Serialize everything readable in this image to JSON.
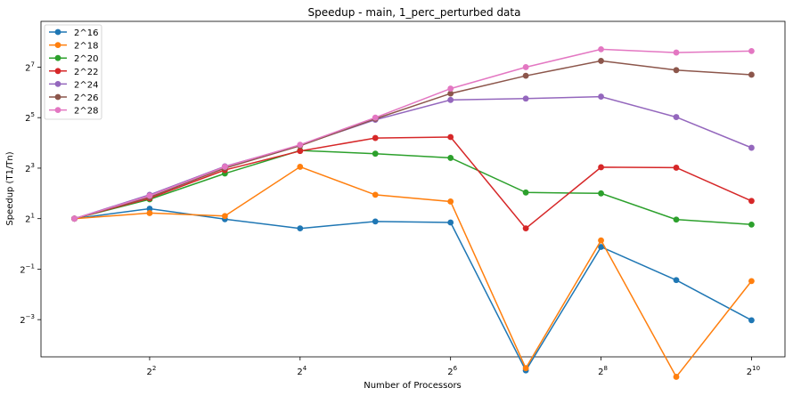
{
  "chart_data": {
    "type": "line",
    "title": "Speedup - main, 1_perc_perturbed data",
    "xlabel": "Number of Processors",
    "ylabel": "Speedup (T1/Tn)",
    "xscale": "log2",
    "yscale": "log2",
    "x": [
      2,
      4,
      8,
      16,
      32,
      64,
      128,
      256,
      512,
      1024
    ],
    "xticks": [
      {
        "value": 4,
        "base": "2",
        "exp": "2"
      },
      {
        "value": 16,
        "base": "2",
        "exp": "4"
      },
      {
        "value": 64,
        "base": "2",
        "exp": "6"
      },
      {
        "value": 256,
        "base": "2",
        "exp": "8"
      },
      {
        "value": 1024,
        "base": "2",
        "exp": "10"
      }
    ],
    "yticks": [
      {
        "value": 0.125,
        "base": "2",
        "exp": "−3"
      },
      {
        "value": 0.5,
        "base": "2",
        "exp": "−1"
      },
      {
        "value": 2,
        "base": "2",
        "exp": "1"
      },
      {
        "value": 8,
        "base": "2",
        "exp": "3"
      },
      {
        "value": 32,
        "base": "2",
        "exp": "5"
      },
      {
        "value": 128,
        "base": "2",
        "exp": "7"
      }
    ],
    "xlim": [
      1.47,
      1394
    ],
    "ylim": [
      0.045,
      450
    ],
    "grid": false,
    "legend_position": "top-left",
    "series": [
      {
        "name": "2^16",
        "color": "#1f77b4",
        "values": [
          2.0,
          2.63,
          1.97,
          1.53,
          1.85,
          1.8,
          0.031,
          0.92,
          0.37,
          0.123
        ]
      },
      {
        "name": "2^18",
        "color": "#ff7f0e",
        "values": [
          2.0,
          2.33,
          2.15,
          8.3,
          3.85,
          3.2,
          0.033,
          1.1,
          0.026,
          0.36
        ]
      },
      {
        "name": "2^20",
        "color": "#2ca02c",
        "values": [
          2.0,
          3.4,
          6.9,
          13.0,
          11.9,
          10.6,
          4.1,
          4.0,
          1.95,
          1.7
        ]
      },
      {
        "name": "2^22",
        "color": "#d62728",
        "values": [
          2.0,
          3.5,
          7.6,
          12.8,
          18.3,
          18.8,
          1.53,
          8.2,
          8.1,
          3.25
        ]
      },
      {
        "name": "2^24",
        "color": "#9467bd",
        "values": [
          2.0,
          3.85,
          8.4,
          15.0,
          30.2,
          52.0,
          54.0,
          57.0,
          32.5,
          14.0
        ]
      },
      {
        "name": "2^26",
        "color": "#8c564b",
        "values": [
          2.0,
          3.6,
          8.0,
          14.8,
          31.0,
          62.0,
          101.0,
          152.0,
          118.0,
          104.0
        ]
      },
      {
        "name": "2^28",
        "color": "#e377c2",
        "values": [
          2.0,
          3.75,
          8.3,
          15.2,
          32.0,
          71.0,
          128.0,
          209.0,
          191.0,
          199.0
        ]
      }
    ]
  }
}
